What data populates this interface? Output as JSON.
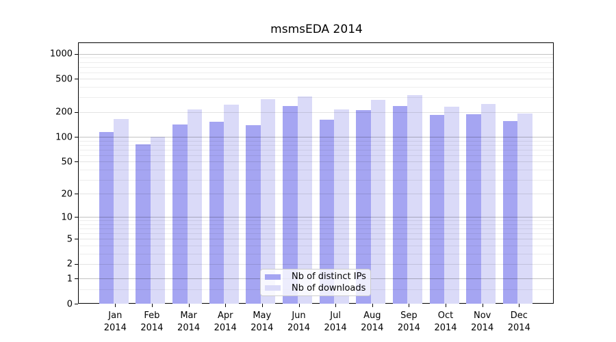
{
  "title": "msmsEDA 2014",
  "colors": {
    "ips_bar": "#a5a5f2",
    "downloads_bar": "#dadaf8",
    "axis": "#000000",
    "legend_border": "#cccccc"
  },
  "legend": {
    "items": [
      {
        "label": "Nb of distinct IPs",
        "series": "ips"
      },
      {
        "label": "Nb of downloads",
        "series": "downloads"
      }
    ]
  },
  "y_axis": {
    "tick_labels": [
      "0",
      "1",
      "2",
      "5",
      "10",
      "20",
      "50",
      "100",
      "200",
      "500",
      "1000"
    ],
    "tick_values": [
      0,
      1,
      2,
      5,
      10,
      20,
      50,
      100,
      200,
      500,
      1000
    ],
    "minor_tick_values": [
      0.5,
      3,
      4,
      6,
      7,
      8,
      9,
      30,
      40,
      60,
      70,
      80,
      90,
      300,
      400,
      600,
      700,
      800,
      900
    ]
  },
  "x_axis": {
    "labels": [
      "Jan 2014",
      "Feb 2014",
      "Mar 2014",
      "Apr 2014",
      "May 2014",
      "Jun 2014",
      "Jul 2014",
      "Aug 2014",
      "Sep 2014",
      "Oct 2014",
      "Nov 2014",
      "Dec 2014"
    ]
  },
  "chart_data": {
    "type": "bar",
    "title": "msmsEDA 2014",
    "categories": [
      "Jan 2014",
      "Feb 2014",
      "Mar 2014",
      "Apr 2014",
      "May 2014",
      "Jun 2014",
      "Jul 2014",
      "Aug 2014",
      "Sep 2014",
      "Oct 2014",
      "Nov 2014",
      "Dec 2014"
    ],
    "series": [
      {
        "name": "Nb of distinct IPs",
        "color": "#a5a5f2",
        "values": [
          114,
          81,
          142,
          153,
          139,
          235,
          161,
          211,
          236,
          183,
          189,
          154
        ]
      },
      {
        "name": "Nb of downloads",
        "color": "#dadaf8",
        "values": [
          164,
          100,
          214,
          244,
          285,
          308,
          214,
          280,
          320,
          233,
          248,
          193
        ]
      }
    ],
    "yscale": "log10(value+1)",
    "ylim": [
      0,
      1300
    ],
    "y_ticks": [
      0,
      1,
      2,
      5,
      10,
      20,
      50,
      100,
      200,
      500,
      1000
    ],
    "grid": true,
    "legend_position": "inside bottom-center"
  }
}
